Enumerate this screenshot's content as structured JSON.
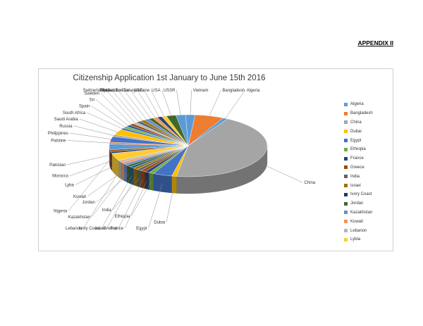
{
  "header": {
    "appendix": "APPENDIX II"
  },
  "chart_data": {
    "type": "pie",
    "title": "Citizenship Application 1st January to June 15th 2016",
    "legend_position": "right",
    "categories": [
      "Vietnam",
      "Bangladesh",
      "Algeria",
      "China",
      "Dubai",
      "Egypt",
      "Ethiopia",
      "France",
      "Greece",
      "India",
      "Israel",
      "Ivory Coast",
      "Jordan",
      "Kazakhstan",
      "Kuwait",
      "Lebanon",
      "Lybia",
      "Morocco",
      "Nigeria",
      "Pakistan",
      "Palstine",
      "Philippines",
      "Russia",
      "Saudi Arabia",
      "South Africa",
      "Spain",
      "Sri",
      "Sweden",
      "Switzerland",
      "Syria",
      "Thailand",
      "Trinidad and",
      "Tunisia",
      "Turkey",
      "UAE",
      "Ukraine",
      "USA",
      "USSR"
    ],
    "values": [
      2,
      6,
      1,
      45,
      1,
      4,
      1,
      1,
      1,
      1,
      1,
      1,
      1,
      1,
      1,
      1,
      4,
      1,
      1,
      3,
      1,
      3,
      1,
      3,
      1,
      1,
      1,
      1,
      1,
      1,
      1,
      1,
      1,
      1,
      1,
      1,
      2,
      2
    ],
    "colors": [
      "#5b9bd5",
      "#ed7d31",
      "#5b9bd5",
      "#a5a5a5",
      "#ffc000",
      "#4472c4",
      "#70ad47",
      "#264478",
      "#9e480e",
      "#636363",
      "#997300",
      "#255e91",
      "#43682b",
      "#698ed0",
      "#f1975a",
      "#b7b7b7",
      "#ffcd33",
      "#264478",
      "#9e480e",
      "#5b9bd5",
      "#ed7d31",
      "#4472c4",
      "#a5a5a5",
      "#ffc000",
      "#4472c4",
      "#70ad47",
      "#255e91",
      "#9e480e",
      "#b7b7b7",
      "#636363",
      "#997300",
      "#698ed0",
      "#43682b",
      "#f1975a",
      "#264478",
      "#ffcd33",
      "#43682b",
      "#5b9bd5"
    ],
    "legend": [
      "Algeria",
      "Bangladesh",
      "China",
      "Dubai",
      "Egypt",
      "Ethiopia",
      "France",
      "Greece",
      "India",
      "Israel",
      "Ivory Coast",
      "Jordan",
      "Kazakhstan",
      "Kuwait",
      "Lebanon",
      "Lybia"
    ],
    "legend_colors": [
      "#5b9bd5",
      "#ed7d31",
      "#a5a5a5",
      "#ffc000",
      "#4472c4",
      "#70ad47",
      "#264478",
      "#9e480e",
      "#636363",
      "#997300",
      "#1f3864",
      "#43682b",
      "#698ed0",
      "#f1975a",
      "#b7b7b7",
      "#ffcd33"
    ],
    "label_display": {
      "Lybia": "Lyba"
    }
  }
}
